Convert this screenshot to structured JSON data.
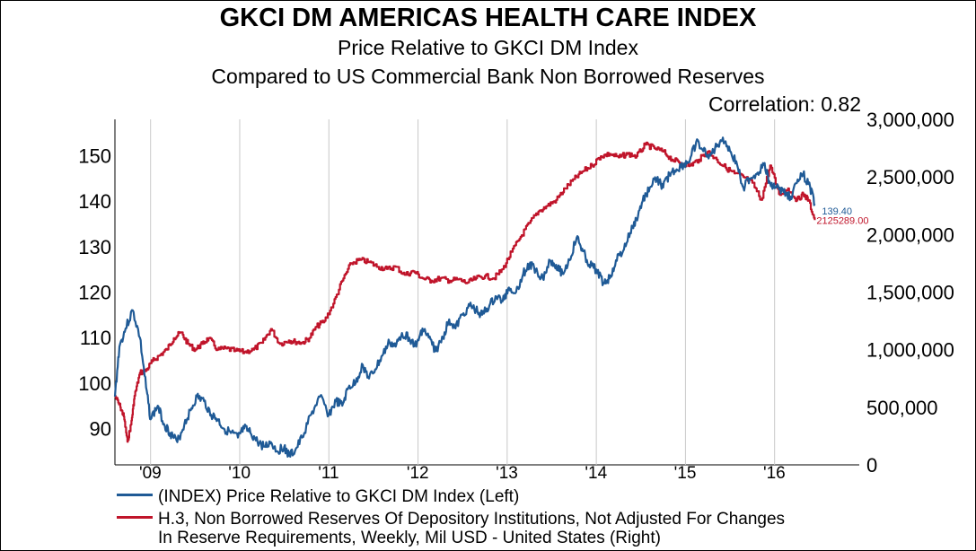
{
  "header": {
    "title": "GKCI DM AMERICAS HEALTH CARE INDEX",
    "subtitle1": "Price Relative to GKCI DM Index",
    "subtitle2": "Compared to US Commercial Bank Non Borrowed Reserves",
    "correlation": "Correlation: 0.82"
  },
  "legend": {
    "series1": "(INDEX) Price Relative to GKCI DM Index  (Left)",
    "series2_line1": "H.3, Non Borrowed Reserves Of Depository Institutions, Not Adjusted For Changes",
    "series2_line2": "In Reserve Requirements, Weekly, Mil USD - United States  (Right)"
  },
  "chart_data": {
    "type": "line",
    "colors": {
      "series1": "#1f5a96",
      "series2": "#c0142a",
      "grid": "#c8c8c8"
    },
    "x_ticks": [
      "'09",
      "'10",
      "'11",
      "'12",
      "'13",
      "'14",
      "'15",
      "'16"
    ],
    "xlim": [
      2008.6,
      2016.95
    ],
    "left_axis": {
      "ticks": [
        "90",
        "100",
        "110",
        "120",
        "130",
        "140",
        "150"
      ],
      "ylim": [
        82,
        158
      ]
    },
    "right_axis": {
      "ticks": [
        "0",
        "500,000",
        "1,000,000",
        "1,500,000",
        "2,000,000",
        "2,500,000",
        "3,000,000"
      ],
      "ylim": [
        0,
        3000000
      ]
    },
    "series": [
      {
        "name": "(INDEX) Price Relative to GKCI DM Index  (Left)",
        "axis": "left",
        "end_label": "139.40",
        "x": [
          2008.6,
          2008.65,
          2008.72,
          2008.8,
          2008.88,
          2008.95,
          2009.0,
          2009.08,
          2009.15,
          2009.22,
          2009.3,
          2009.38,
          2009.45,
          2009.52,
          2009.6,
          2009.68,
          2009.75,
          2009.82,
          2009.9,
          2009.98,
          2010.05,
          2010.12,
          2010.2,
          2010.28,
          2010.35,
          2010.42,
          2010.5,
          2010.55,
          2010.62,
          2010.7,
          2010.8,
          2010.9,
          2011.0,
          2011.08,
          2011.15,
          2011.22,
          2011.3,
          2011.38,
          2011.45,
          2011.52,
          2011.6,
          2011.68,
          2011.75,
          2011.82,
          2011.9,
          2011.98,
          2012.05,
          2012.12,
          2012.2,
          2012.28,
          2012.35,
          2012.42,
          2012.5,
          2012.58,
          2012.65,
          2012.72,
          2012.8,
          2012.88,
          2012.95,
          2013.02,
          2013.1,
          2013.18,
          2013.25,
          2013.32,
          2013.4,
          2013.48,
          2013.55,
          2013.62,
          2013.7,
          2013.78,
          2013.85,
          2013.92,
          2014.0,
          2014.08,
          2014.15,
          2014.22,
          2014.3,
          2014.38,
          2014.45,
          2014.52,
          2014.6,
          2014.68,
          2014.75,
          2014.82,
          2014.9,
          2014.98,
          2015.05,
          2015.12,
          2015.2,
          2015.28,
          2015.35,
          2015.42,
          2015.5,
          2015.58,
          2015.65,
          2015.72,
          2015.8,
          2015.88,
          2015.95,
          2016.02,
          2016.1,
          2016.18,
          2016.25,
          2016.32,
          2016.4,
          2016.45
        ],
        "y": [
          97,
          108,
          112,
          116,
          110,
          99,
          92,
          95,
          91,
          89,
          87,
          91,
          94,
          97,
          96,
          93,
          92,
          90,
          89,
          88,
          90,
          89,
          87,
          86,
          87,
          85,
          86,
          84,
          85,
          88,
          93,
          97,
          93,
          96,
          95,
          99,
          100,
          104,
          101,
          103,
          106,
          109,
          108,
          111,
          110,
          108,
          112,
          110,
          107,
          110,
          114,
          112,
          115,
          117,
          116,
          115,
          117,
          119,
          118,
          121,
          120,
          124,
          126,
          125,
          123,
          127,
          126,
          124,
          127,
          132,
          129,
          126,
          125,
          122,
          123,
          127,
          129,
          133,
          136,
          140,
          143,
          145,
          143,
          146,
          147,
          148,
          149,
          153,
          151,
          150,
          152,
          154,
          151,
          148,
          143,
          145,
          146,
          148,
          144,
          143,
          142,
          141,
          144,
          146,
          143,
          139.4
        ]
      },
      {
        "name": "H.3, Non Borrowed Reserves Of Depository Institutions, Not Adjusted For Changes In Reserve Requirements, Weekly, Mil USD - United States  (Right)",
        "axis": "right",
        "end_label": "2125289.00",
        "x": [
          2008.6,
          2008.66,
          2008.7,
          2008.74,
          2008.78,
          2008.82,
          2008.88,
          2008.95,
          2009.02,
          2009.1,
          2009.18,
          2009.26,
          2009.34,
          2009.42,
          2009.5,
          2009.58,
          2009.65,
          2009.75,
          2009.85,
          2009.95,
          2010.05,
          2010.15,
          2010.25,
          2010.35,
          2010.45,
          2010.55,
          2010.62,
          2010.7,
          2010.78,
          2010.86,
          2010.95,
          2011.05,
          2011.15,
          2011.25,
          2011.35,
          2011.45,
          2011.55,
          2011.65,
          2011.75,
          2011.85,
          2011.95,
          2012.05,
          2012.15,
          2012.25,
          2012.35,
          2012.45,
          2012.55,
          2012.65,
          2012.75,
          2012.85,
          2012.95,
          2013.05,
          2013.15,
          2013.25,
          2013.35,
          2013.45,
          2013.55,
          2013.65,
          2013.75,
          2013.85,
          2013.95,
          2014.05,
          2014.15,
          2014.25,
          2014.35,
          2014.45,
          2014.55,
          2014.65,
          2014.75,
          2014.85,
          2014.95,
          2015.05,
          2015.15,
          2015.25,
          2015.35,
          2015.45,
          2015.55,
          2015.65,
          2015.75,
          2015.85,
          2015.95,
          2016.05,
          2016.15,
          2016.25,
          2016.32,
          2016.38,
          2016.45
        ],
        "y": [
          600000,
          500000,
          420000,
          200000,
          350000,
          600000,
          800000,
          820000,
          900000,
          950000,
          1000000,
          1100000,
          1150000,
          1050000,
          1000000,
          1050000,
          1100000,
          1000000,
          1010000,
          990000,
          980000,
          1000000,
          1060000,
          1180000,
          1050000,
          1080000,
          1070000,
          1060000,
          1100000,
          1200000,
          1250000,
          1400000,
          1600000,
          1750000,
          1780000,
          1760000,
          1720000,
          1700000,
          1720000,
          1650000,
          1680000,
          1620000,
          1600000,
          1620000,
          1600000,
          1610000,
          1580000,
          1620000,
          1640000,
          1620000,
          1700000,
          1850000,
          1980000,
          2100000,
          2200000,
          2250000,
          2300000,
          2400000,
          2480000,
          2550000,
          2600000,
          2680000,
          2700000,
          2670000,
          2700000,
          2680000,
          2780000,
          2750000,
          2720000,
          2650000,
          2620000,
          2600000,
          2650000,
          2720000,
          2650000,
          2580000,
          2530000,
          2500000,
          2450000,
          2300000,
          2600000,
          2350000,
          2400000,
          2300000,
          2350000,
          2300000,
          2125289
        ]
      }
    ]
  }
}
